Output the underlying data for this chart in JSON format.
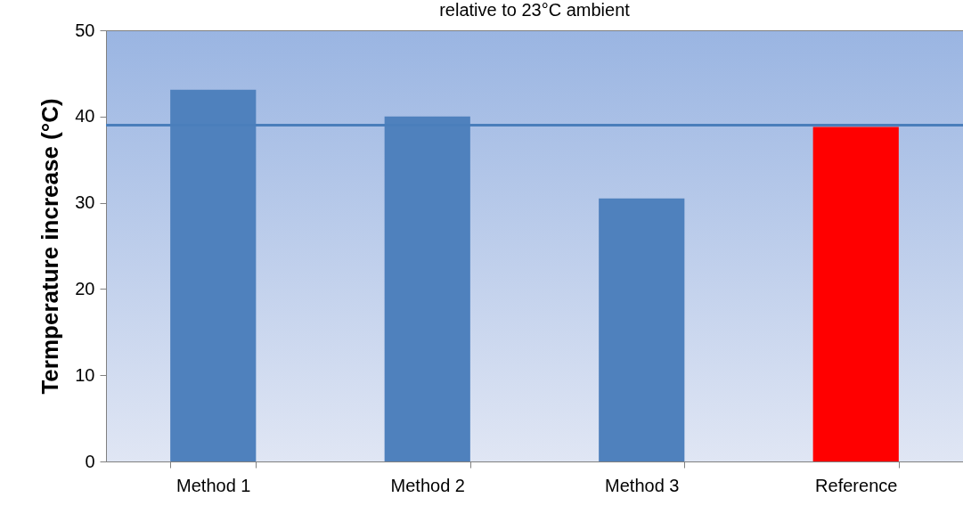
{
  "chart_data": {
    "type": "bar",
    "title": "relative to 23°C ambient",
    "ylabel": "Termperature increase (°C)",
    "categories": [
      "Method 1",
      "Method 2",
      "Method 3",
      "Reference"
    ],
    "values": [
      43.1,
      40.0,
      30.5,
      38.8
    ],
    "colors": [
      "#4f81bd",
      "#4f81bd",
      "#4f81bd",
      "#ff0000"
    ],
    "ylim": [
      0,
      50
    ],
    "yticks": [
      0,
      10,
      20,
      30,
      40,
      50
    ],
    "ref_lines": [
      {
        "axis": "y",
        "value": 39,
        "color": "#4a7ebb"
      }
    ]
  }
}
